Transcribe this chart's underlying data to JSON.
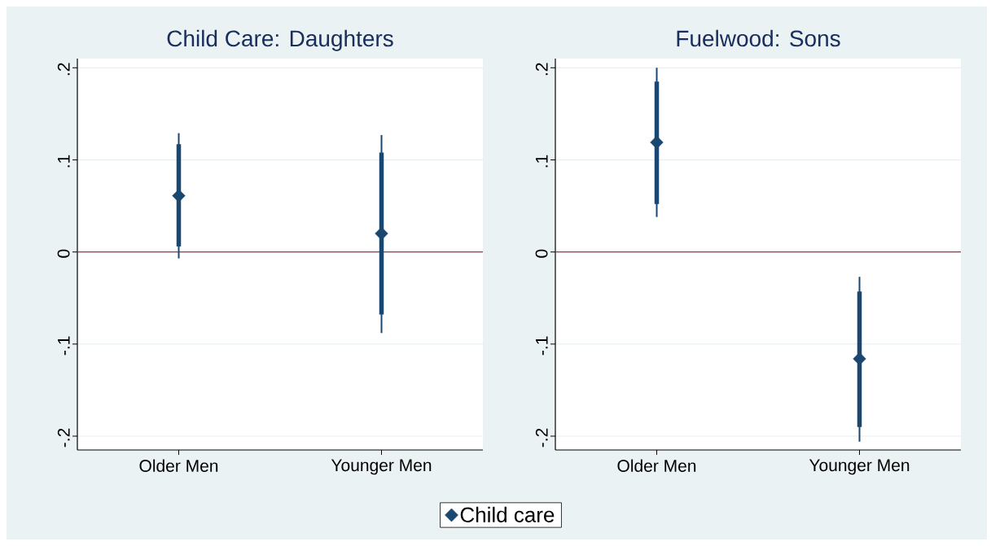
{
  "chart_data": [
    {
      "type": "scatter",
      "title": "Child Care: Daughters",
      "categories": [
        "Older Men",
        "Younger Men"
      ],
      "series": [
        {
          "name": "Child care",
          "color": "#1a476f",
          "values": [
            0.061,
            0.02
          ],
          "errors": [
            [
              -0.007,
              0.129
            ],
            [
              -0.088,
              0.127
            ]
          ]
        },
        {
          "type": "bar",
          "color": "#1a476f",
          "base": [
            0.006,
            -0.068
          ],
          "values": [
            0.111,
            0.176
          ]
        }
      ],
      "ylim": [
        -0.215,
        0.21
      ],
      "yticks": [
        {
          "value": -0.2,
          "label": "-.2"
        },
        {
          "value": -0.1,
          "label": "-.1"
        },
        0,
        {
          "value": 0.1,
          "label": ".1"
        },
        {
          "value": 0.2,
          "label": ".2"
        }
      ],
      "grid": "y",
      "marker": "diamond",
      "legend": "bottom",
      "ref_lines": [
        {
          "axis": "y",
          "value": 0,
          "color": "#c81e46"
        }
      ]
    },
    {
      "type": "scatter",
      "title": "Fuelwood: Sons",
      "categories": [
        "Older Men",
        "Younger Men"
      ],
      "series": [
        {
          "color": "#1a476f",
          "values": [
            0.119,
            -0.116
          ],
          "errors": [
            [
              0.038,
              0.2
            ],
            [
              -0.206,
              -0.027
            ]
          ]
        },
        {
          "type": "bar",
          "color": "#1a476f",
          "base": [
            0.052,
            -0.19
          ],
          "values": [
            0.133,
            0.147
          ]
        }
      ],
      "ylim": [
        -0.215,
        0.21
      ],
      "yticks": [
        {
          "value": -0.2,
          "label": "-.2"
        },
        {
          "value": -0.1,
          "label": "-.1"
        },
        0,
        {
          "value": 0.1,
          "label": ".1"
        },
        {
          "value": 0.2,
          "label": ".2"
        }
      ],
      "grid": "y",
      "marker": "diamond",
      "ref_lines": [
        {
          "axis": "y",
          "value": 0,
          "color": "#c81e46"
        }
      ]
    }
  ]
}
